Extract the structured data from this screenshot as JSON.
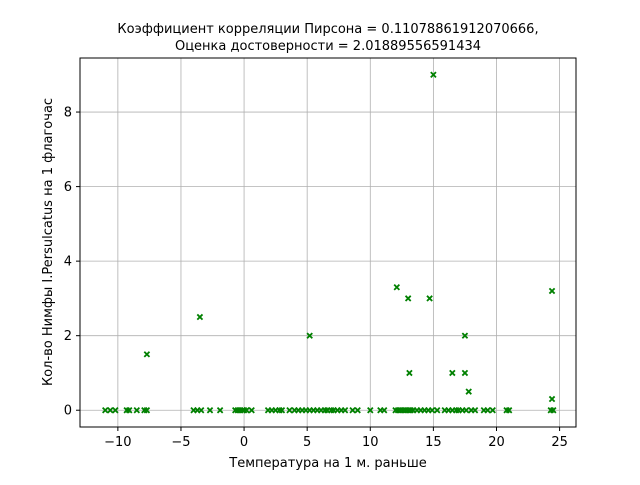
{
  "chart_data": {
    "type": "scatter",
    "title_line1": "Коэффициент корреляции Пирсона = 0.11078861912070666,",
    "title_line2": "Оценка достоверности = 2.01889556591434",
    "xlabel": "Температура на 1 м. раньше",
    "ylabel": "Кол-во Нимфы I.Persulcatus на 1 флагочас",
    "xlim": [
      -13,
      26.3
    ],
    "ylim": [
      -0.45,
      9.45
    ],
    "xticks": [
      -10,
      -5,
      0,
      5,
      10,
      15,
      20,
      25
    ],
    "yticks": [
      0,
      2,
      4,
      6,
      8
    ],
    "grid": true,
    "marker": "x",
    "color": "#008000",
    "points": [
      [
        15.0,
        9.0
      ],
      [
        12.1,
        3.3
      ],
      [
        13.0,
        3.0
      ],
      [
        14.7,
        3.0
      ],
      [
        24.4,
        3.2
      ],
      [
        -3.5,
        2.5
      ],
      [
        5.2,
        2.0
      ],
      [
        17.5,
        2.0
      ],
      [
        -7.7,
        1.5
      ],
      [
        13.1,
        1.0
      ],
      [
        16.5,
        1.0
      ],
      [
        17.5,
        1.0
      ],
      [
        17.8,
        0.5
      ],
      [
        24.4,
        0.3
      ],
      [
        -11.0,
        0
      ],
      [
        -10.6,
        0
      ],
      [
        -10.2,
        0
      ],
      [
        -9.3,
        0
      ],
      [
        -9.1,
        0
      ],
      [
        -8.5,
        0
      ],
      [
        -7.9,
        0
      ],
      [
        -7.7,
        0
      ],
      [
        -4.0,
        0
      ],
      [
        -3.7,
        0
      ],
      [
        -3.4,
        0
      ],
      [
        -2.7,
        0
      ],
      [
        -1.9,
        0
      ],
      [
        -0.7,
        0
      ],
      [
        -0.5,
        0
      ],
      [
        -0.3,
        0
      ],
      [
        -0.1,
        0
      ],
      [
        0.0,
        0
      ],
      [
        0.2,
        0
      ],
      [
        0.6,
        0
      ],
      [
        1.9,
        0
      ],
      [
        2.2,
        0
      ],
      [
        2.5,
        0
      ],
      [
        2.8,
        0
      ],
      [
        3.0,
        0
      ],
      [
        3.6,
        0
      ],
      [
        4.0,
        0
      ],
      [
        4.3,
        0
      ],
      [
        4.6,
        0
      ],
      [
        4.9,
        0
      ],
      [
        5.2,
        0
      ],
      [
        5.5,
        0
      ],
      [
        5.8,
        0
      ],
      [
        6.1,
        0
      ],
      [
        6.4,
        0
      ],
      [
        6.6,
        0
      ],
      [
        6.9,
        0
      ],
      [
        7.1,
        0
      ],
      [
        7.4,
        0
      ],
      [
        7.7,
        0
      ],
      [
        8.0,
        0
      ],
      [
        8.6,
        0
      ],
      [
        9.0,
        0
      ],
      [
        10.0,
        0
      ],
      [
        10.8,
        0
      ],
      [
        11.1,
        0
      ],
      [
        12.0,
        0
      ],
      [
        12.2,
        0
      ],
      [
        12.4,
        0
      ],
      [
        12.6,
        0
      ],
      [
        12.8,
        0
      ],
      [
        13.0,
        0
      ],
      [
        13.2,
        0
      ],
      [
        13.4,
        0
      ],
      [
        13.7,
        0
      ],
      [
        14.0,
        0
      ],
      [
        14.3,
        0
      ],
      [
        14.6,
        0
      ],
      [
        14.9,
        0
      ],
      [
        15.3,
        0
      ],
      [
        15.9,
        0
      ],
      [
        16.2,
        0
      ],
      [
        16.5,
        0
      ],
      [
        16.8,
        0
      ],
      [
        17.0,
        0
      ],
      [
        17.3,
        0
      ],
      [
        17.6,
        0
      ],
      [
        18.0,
        0
      ],
      [
        18.3,
        0
      ],
      [
        19.0,
        0
      ],
      [
        19.3,
        0
      ],
      [
        19.7,
        0
      ],
      [
        20.8,
        0
      ],
      [
        21.0,
        0
      ],
      [
        24.3,
        0
      ],
      [
        24.5,
        0
      ]
    ]
  }
}
